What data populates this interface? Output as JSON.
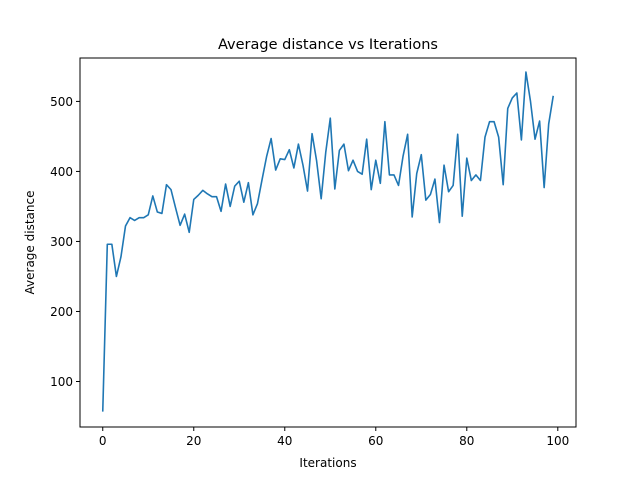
{
  "chart_data": {
    "type": "line",
    "title": "Average distance vs Iterations",
    "xlabel": "Iterations",
    "ylabel": "Average distance",
    "xlim": [
      -5,
      104
    ],
    "ylim": [
      35,
      562
    ],
    "xticks": [
      0,
      20,
      40,
      60,
      80,
      100
    ],
    "yticks": [
      100,
      200,
      300,
      400,
      500
    ],
    "grid": false,
    "colors": {
      "line": "#1f77b4"
    },
    "series": [
      {
        "x": [
          0,
          1,
          2,
          3,
          4,
          5,
          6,
          7,
          8,
          9,
          10,
          11,
          12,
          13,
          14,
          15,
          16,
          17,
          18,
          19,
          20,
          21,
          22,
          23,
          24,
          25,
          26,
          27,
          28,
          29,
          30,
          31,
          32,
          33,
          34,
          35,
          36,
          37,
          38,
          39,
          40,
          41,
          42,
          43,
          44,
          45,
          46,
          47,
          48,
          49,
          50,
          51,
          52,
          53,
          54,
          55,
          56,
          57,
          58,
          59,
          60,
          61,
          62,
          63,
          64,
          65,
          66,
          67,
          68,
          69,
          70,
          71,
          72,
          73,
          74,
          75,
          76,
          77,
          78,
          79,
          80,
          81,
          82,
          83,
          84,
          85,
          86,
          87,
          88,
          89,
          90,
          91,
          92,
          93,
          94,
          95,
          96,
          97,
          98,
          99
        ],
        "values": [
          57,
          296,
          296,
          250,
          278,
          322,
          334,
          330,
          334,
          334,
          338,
          365,
          342,
          340,
          381,
          374,
          348,
          323,
          339,
          313,
          360,
          366,
          373,
          368,
          364,
          364,
          343,
          382,
          350,
          379,
          386,
          356,
          384,
          338,
          354,
          388,
          421,
          447,
          402,
          418,
          417,
          431,
          405,
          439,
          409,
          372,
          454,
          415,
          361,
          427,
          476,
          375,
          430,
          439,
          401,
          416,
          400,
          396,
          446,
          374,
          416,
          383,
          471,
          395,
          395,
          380,
          422,
          453,
          335,
          397,
          424,
          359,
          367,
          389,
          327,
          409,
          371,
          380,
          453,
          336,
          419,
          387,
          395,
          387,
          449,
          471,
          471,
          449,
          381,
          490,
          505,
          512,
          445,
          542,
          500,
          446,
          472,
          377,
          468,
          508
        ]
      }
    ]
  }
}
